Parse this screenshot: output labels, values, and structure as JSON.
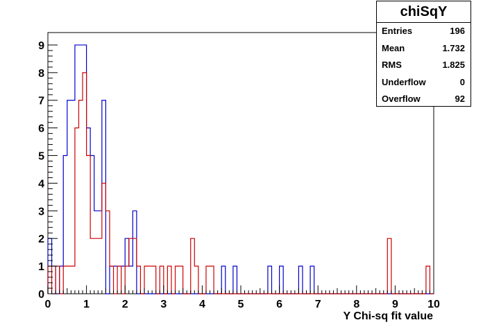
{
  "chart_data": {
    "type": "histogram",
    "title": "chiSqY",
    "xlabel": "Y Chi-sq fit value",
    "ylabel": "",
    "xlim": [
      0,
      10
    ],
    "ylim": [
      0,
      9.45
    ],
    "bin_width": 0.1,
    "x_ticks": [
      "0",
      "1",
      "2",
      "3",
      "4",
      "5",
      "6",
      "7",
      "8",
      "9",
      "10"
    ],
    "y_ticks": [
      "0",
      "1",
      "2",
      "3",
      "4",
      "5",
      "6",
      "7",
      "8",
      "9"
    ],
    "grid": false,
    "series": [
      {
        "color": "#0000cc",
        "values": [
          2,
          1,
          0,
          1,
          5,
          7,
          7,
          9,
          9,
          9,
          6,
          5,
          3,
          3,
          7,
          0,
          1,
          1,
          1,
          1,
          2,
          1,
          3,
          0,
          0,
          0,
          0,
          0,
          0,
          0,
          0,
          0,
          0,
          0,
          0,
          0,
          0,
          0,
          0,
          0,
          0,
          0,
          0,
          0,
          0,
          1,
          0,
          0,
          1,
          0,
          0,
          0,
          0,
          0,
          0,
          0,
          0,
          1,
          0,
          0,
          1,
          0,
          0,
          0,
          0,
          1,
          0,
          0,
          1,
          0,
          0,
          0,
          0,
          0,
          0,
          0,
          0,
          0,
          0,
          0,
          0,
          0,
          0,
          0,
          0,
          0,
          0,
          0,
          0,
          0,
          0,
          0,
          0,
          0,
          0,
          0,
          0,
          0,
          0,
          0
        ]
      },
      {
        "color": "#cc0000",
        "values": [
          1,
          0,
          1,
          0,
          1,
          1,
          1,
          6,
          7,
          8,
          5,
          2,
          2,
          2,
          4,
          3,
          1,
          0,
          1,
          0,
          1,
          2,
          2,
          1,
          0,
          1,
          1,
          1,
          0,
          1,
          0,
          1,
          0,
          1,
          1,
          0,
          0,
          2,
          1,
          0,
          0,
          1,
          1,
          0,
          0,
          0,
          0,
          0,
          0,
          0,
          0,
          0,
          0,
          0,
          0,
          0,
          0,
          0,
          0,
          0,
          0,
          0,
          0,
          0,
          0,
          0,
          0,
          0,
          0,
          0,
          0,
          0,
          0,
          0,
          0,
          0,
          0,
          0,
          0,
          0,
          0,
          0,
          0,
          0,
          0,
          0,
          0,
          0,
          2,
          0,
          0,
          0,
          0,
          0,
          0,
          0,
          0,
          0,
          1,
          0
        ]
      }
    ]
  },
  "stats": {
    "title": "chiSqY",
    "rows": [
      {
        "key": "Entries",
        "value": "196"
      },
      {
        "key": "Mean",
        "value": "1.732"
      },
      {
        "key": "RMS",
        "value": "1.825"
      },
      {
        "key": "Underflow",
        "value": "0"
      },
      {
        "key": "Overflow",
        "value": "92"
      }
    ]
  }
}
